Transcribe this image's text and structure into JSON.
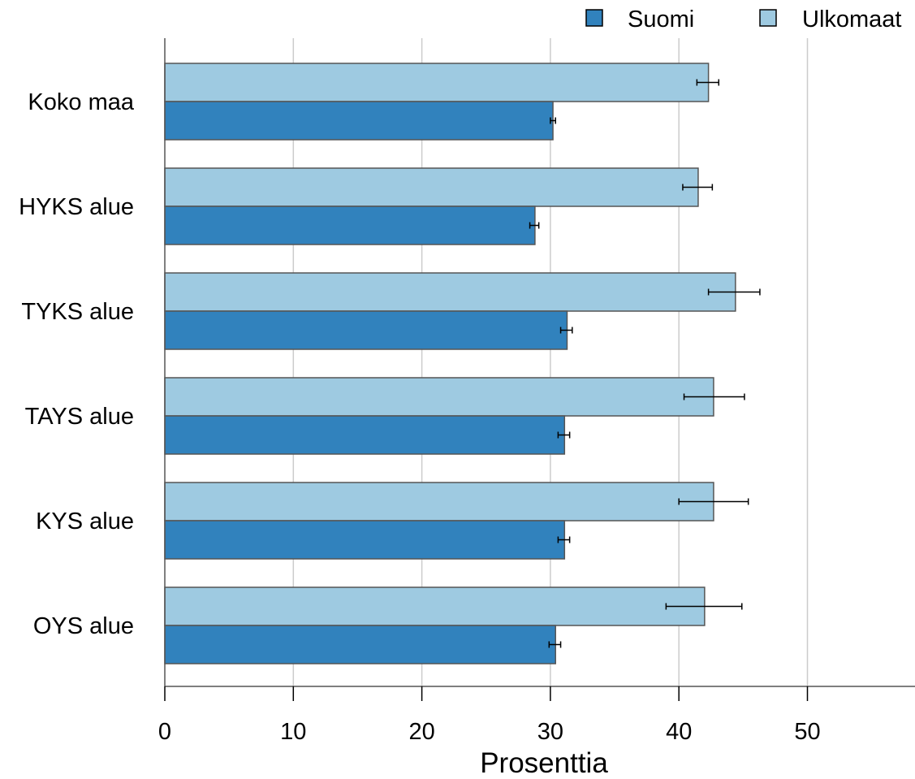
{
  "chart_data": {
    "type": "bar",
    "orientation": "horizontal",
    "categories": [
      "Koko maa",
      "HYKS alue",
      "TYKS alue",
      "TAYS alue",
      "KYS alue",
      "OYS alue"
    ],
    "series": [
      {
        "name": "Suomi",
        "color": "#3182bd",
        "values": [
          30.2,
          28.8,
          31.3,
          31.1,
          31.1,
          30.4
        ],
        "error_low": [
          30.0,
          28.4,
          30.8,
          30.6,
          30.6,
          29.9
        ],
        "error_high": [
          30.4,
          29.1,
          31.7,
          31.5,
          31.5,
          30.8
        ]
      },
      {
        "name": "Ulkomaat",
        "color": "#9ecae1",
        "values": [
          42.3,
          41.5,
          44.4,
          42.7,
          42.7,
          42.0
        ],
        "error_low": [
          41.4,
          40.3,
          42.3,
          40.4,
          40.0,
          39.0
        ],
        "error_high": [
          43.1,
          42.6,
          46.3,
          45.1,
          45.4,
          44.9
        ]
      }
    ],
    "xlabel": "Prosenttia",
    "ylabel": "",
    "xlim": [
      0,
      58.3
    ],
    "xticks": [
      0,
      10,
      20,
      30,
      40,
      50
    ],
    "grid": "vertical",
    "legend_position": "top-right",
    "colors": {
      "bar_stroke": "#555555",
      "grid": "#cccccc",
      "axis": "#555555",
      "error_bar": "#000000"
    }
  }
}
